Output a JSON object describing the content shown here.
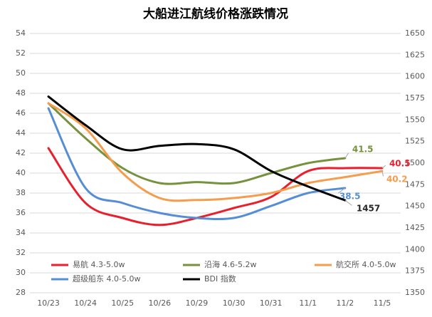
{
  "chart_data": {
    "type": "line",
    "title": "大船进江航线价格涨跌情况",
    "categories": [
      "10/23",
      "10/24",
      "10/25",
      "10/26",
      "10/29",
      "10/30",
      "10/31",
      "11/1",
      "11/2",
      "11/5"
    ],
    "series": [
      {
        "name": "易航 4.3-5.0w",
        "color": "#e8202e",
        "values": [
          42.5,
          37,
          35.5,
          34.8,
          35.5,
          36.5,
          37.6,
          40.2,
          40.5,
          40.5
        ]
      },
      {
        "name": "沿海 4.6-5.2w",
        "color": "#76923c",
        "values": [
          47,
          43.5,
          40.5,
          39,
          39.1,
          39,
          40,
          41,
          41.5,
          null
        ]
      },
      {
        "name": "航交所 4.0-5.0w",
        "color": "#f59c4d",
        "values": [
          47,
          44.5,
          40,
          37.5,
          37.3,
          37.5,
          38,
          39,
          39.6,
          40.2
        ]
      },
      {
        "name": "超级船东 4.0-5.0w",
        "color": "#558ed5",
        "values": [
          46.5,
          38.5,
          37,
          36,
          35.5,
          35.5,
          36.7,
          38,
          38.5,
          null
        ]
      },
      {
        "name": "BDI 指数",
        "color": "#000000",
        "axis": "y2",
        "values": [
          1577,
          1544,
          1516,
          1520,
          1522,
          1516,
          1491,
          1473,
          1457,
          null
        ]
      }
    ],
    "ylim": [
      28,
      54
    ],
    "yticks": [
      28,
      30,
      32,
      34,
      36,
      38,
      40,
      42,
      44,
      46,
      48,
      50,
      52,
      54
    ],
    "y2lim": [
      1350,
      1650
    ],
    "y2ticks": [
      1350,
      1375,
      1400,
      1425,
      1450,
      1475,
      1500,
      1525,
      1550,
      1575,
      1600,
      1625,
      1650
    ],
    "grid": true
  }
}
